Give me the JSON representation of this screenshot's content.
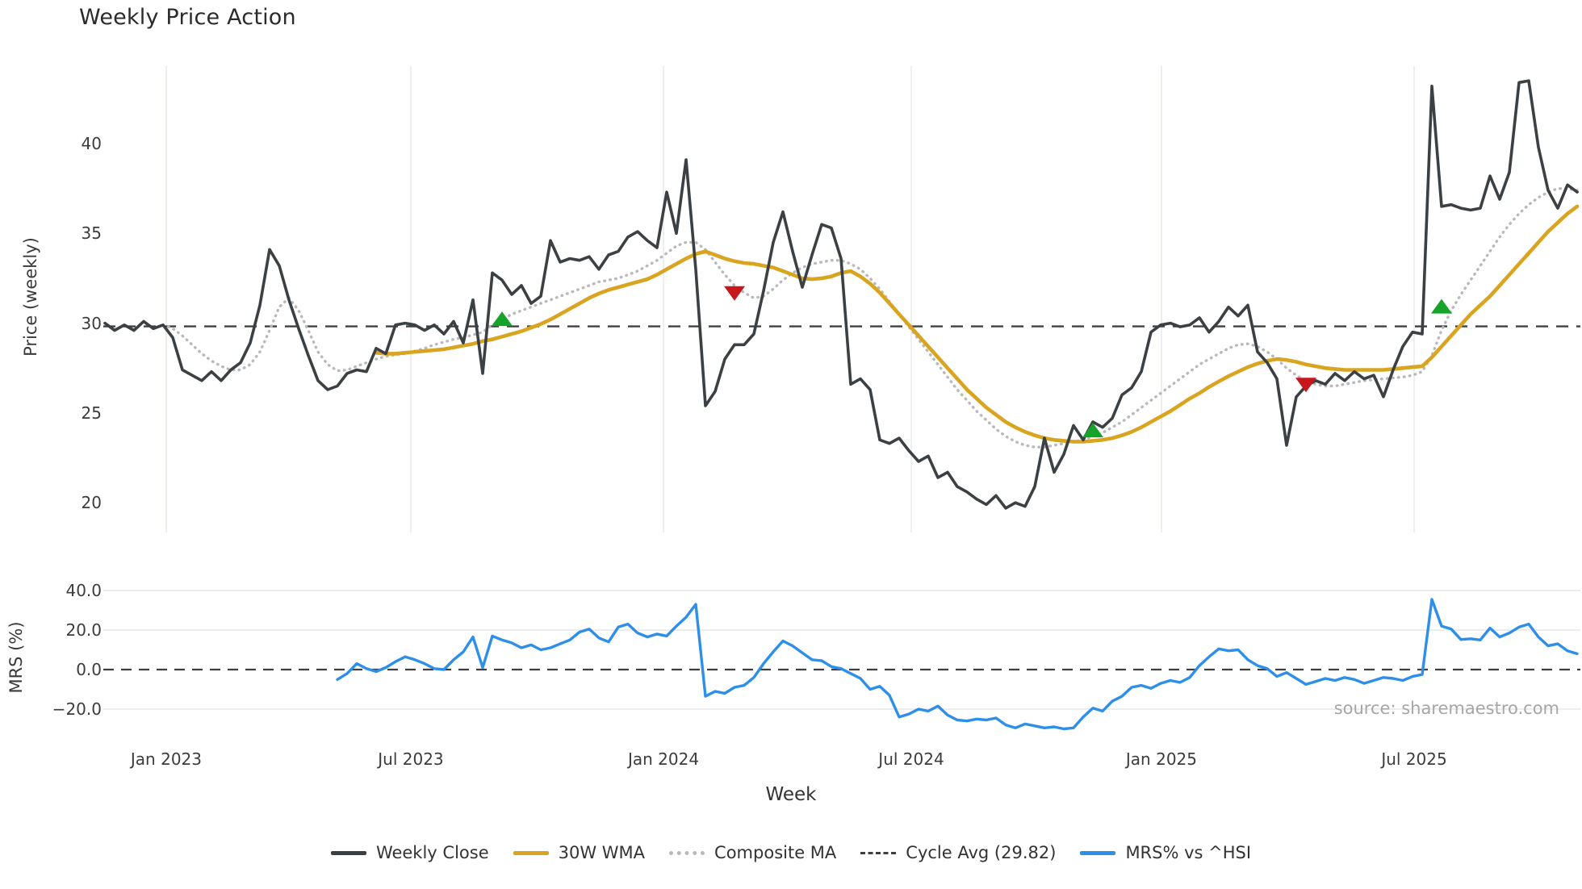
{
  "page": {
    "title": "Weekly Price Action",
    "source_note": "source: sharemaestro.com"
  },
  "colors": {
    "weekly_close": "#3b4044",
    "wma_30w": "#d9a521",
    "composite_ma": "#b9b9b9",
    "cycle_avg": "#3f3f3f",
    "mrs": "#2e8fe9",
    "buy_marker": "#16a329",
    "sell_marker": "#c8161d",
    "gridline": "#e9e9f0",
    "gridline_minor": "#e7e7e7",
    "tick_text": "#3c3c3c"
  },
  "legend": {
    "items": [
      {
        "label": "Weekly Close",
        "style": "solid",
        "color_key": "weekly_close"
      },
      {
        "label": "30W WMA",
        "style": "solid",
        "color_key": "wma_30w"
      },
      {
        "label": "Composite MA",
        "style": "dotted",
        "color_key": "composite_ma"
      },
      {
        "label": "Cycle Avg (29.82)",
        "style": "dashed",
        "color_key": "cycle_avg"
      },
      {
        "label": "MRS% vs ^HSI",
        "style": "solid",
        "color_key": "mrs"
      }
    ]
  },
  "chart_data": [
    {
      "id": "price",
      "type": "line",
      "title": "Weekly Price Action",
      "ylabel": "Price (weekly)",
      "xlabel": "Week",
      "ylim": [
        18.3,
        44.4
      ],
      "yticks": [
        40,
        35,
        30,
        25,
        20
      ],
      "grid": "vertical-only",
      "x_axis": {
        "tick_labels": [
          "Jan 2023",
          "Jul 2023",
          "Jan 2024",
          "Jul 2024",
          "Jan 2025",
          "Jul 2025"
        ],
        "tick_week_index": [
          6.33,
          31.58,
          57.67,
          83.25,
          109.08,
          135.17
        ],
        "weeks_total": 153
      },
      "cycle_avg": 29.82,
      "series": [
        {
          "name": "Weekly Close",
          "style": "solid",
          "color_key": "weekly_close",
          "start_week_index": 0,
          "values": [
            30.0,
            29.6,
            29.9,
            29.6,
            30.1,
            29.7,
            29.9,
            29.2,
            27.4,
            27.1,
            26.8,
            27.3,
            26.8,
            27.4,
            27.8,
            28.9,
            31.0,
            34.1,
            33.2,
            31.3,
            29.7,
            28.2,
            26.8,
            26.3,
            26.5,
            27.2,
            27.4,
            27.3,
            28.6,
            28.3,
            29.9,
            30.0,
            29.9,
            29.6,
            29.9,
            29.4,
            30.1,
            28.9,
            31.3,
            27.2,
            32.8,
            32.4,
            31.6,
            32.1,
            31.1,
            31.5,
            34.6,
            33.4,
            33.6,
            33.5,
            33.7,
            33.0,
            33.8,
            34.0,
            34.8,
            35.1,
            34.6,
            34.2,
            37.3,
            35.0,
            39.1,
            33.0,
            25.4,
            26.2,
            28.0,
            28.8,
            28.8,
            29.4,
            31.8,
            34.5,
            36.2,
            34.0,
            32.0,
            33.8,
            35.5,
            35.3,
            33.6,
            26.6,
            26.9,
            26.3,
            23.5,
            23.3,
            23.6,
            22.9,
            22.3,
            22.6,
            21.4,
            21.7,
            20.9,
            20.6,
            20.2,
            19.9,
            20.4,
            19.7,
            20.0,
            19.8,
            20.9,
            23.6,
            21.7,
            22.7,
            24.3,
            23.5,
            24.5,
            24.2,
            24.7,
            26.0,
            26.4,
            27.3,
            29.5,
            29.9,
            30.0,
            29.8,
            29.9,
            30.3,
            29.5,
            30.1,
            30.9,
            30.4,
            31.0,
            28.4,
            27.8,
            26.9,
            23.2,
            25.9,
            26.5,
            26.8,
            26.6,
            27.2,
            26.8,
            27.3,
            26.9,
            27.1,
            25.9,
            27.4,
            28.7,
            29.5,
            29.4,
            43.2,
            36.5,
            36.6,
            36.4,
            36.3,
            36.4,
            38.2,
            36.9,
            38.4,
            43.4,
            43.5,
            39.8,
            37.4,
            36.4,
            37.7,
            37.3
          ]
        },
        {
          "name": "30W WMA",
          "style": "solid",
          "color_key": "wma_30w",
          "start_week_index": 28,
          "values": [
            28.35,
            28.3,
            28.3,
            28.35,
            28.4,
            28.45,
            28.5,
            28.55,
            28.65,
            28.75,
            28.85,
            29.0,
            29.1,
            29.25,
            29.4,
            29.55,
            29.75,
            29.95,
            30.2,
            30.5,
            30.8,
            31.1,
            31.4,
            31.65,
            31.85,
            32.0,
            32.15,
            32.3,
            32.45,
            32.7,
            33.0,
            33.3,
            33.6,
            33.85,
            34.0,
            33.8,
            33.6,
            33.45,
            33.35,
            33.3,
            33.2,
            33.1,
            32.9,
            32.7,
            32.5,
            32.45,
            32.5,
            32.6,
            32.8,
            32.9,
            32.6,
            32.2,
            31.7,
            31.1,
            30.5,
            29.9,
            29.3,
            28.7,
            28.1,
            27.5,
            26.9,
            26.3,
            25.8,
            25.3,
            24.9,
            24.5,
            24.2,
            23.95,
            23.75,
            23.6,
            23.5,
            23.45,
            23.4,
            23.4,
            23.45,
            23.5,
            23.6,
            23.75,
            23.95,
            24.2,
            24.5,
            24.8,
            25.1,
            25.45,
            25.8,
            26.1,
            26.45,
            26.75,
            27.05,
            27.3,
            27.55,
            27.75,
            27.9,
            28.0,
            27.95,
            27.85,
            27.7,
            27.6,
            27.5,
            27.45,
            27.4,
            27.4,
            27.4,
            27.4,
            27.4,
            27.45,
            27.5,
            27.55,
            27.6,
            28.1,
            28.7,
            29.3,
            29.9,
            30.5,
            31.0,
            31.5,
            32.1,
            32.7,
            33.3,
            33.9,
            34.5,
            35.1,
            35.6,
            36.1,
            36.5
          ]
        },
        {
          "name": "Composite MA",
          "style": "dotted",
          "color_key": "composite_ma",
          "start_week_index": 6,
          "values": [
            29.9,
            29.7,
            29.3,
            28.8,
            28.3,
            27.9,
            27.6,
            27.4,
            27.4,
            27.7,
            28.4,
            29.6,
            30.9,
            31.4,
            30.7,
            29.6,
            28.4,
            27.7,
            27.35,
            27.4,
            27.6,
            27.8,
            28.0,
            28.15,
            28.25,
            28.3,
            28.45,
            28.6,
            28.8,
            28.95,
            29.1,
            29.2,
            29.35,
            29.5,
            29.9,
            30.2,
            30.5,
            30.7,
            30.9,
            31.1,
            31.3,
            31.5,
            31.7,
            31.9,
            32.1,
            32.3,
            32.4,
            32.5,
            32.7,
            32.9,
            33.2,
            33.5,
            33.9,
            34.3,
            34.5,
            34.5,
            34.1,
            33.4,
            32.7,
            32.1,
            31.7,
            31.4,
            31.5,
            31.9,
            32.4,
            32.8,
            33.1,
            33.3,
            33.4,
            33.5,
            33.5,
            33.3,
            33.0,
            32.5,
            31.9,
            31.2,
            30.5,
            29.8,
            29.1,
            28.4,
            27.7,
            27.0,
            26.3,
            25.7,
            25.1,
            24.6,
            24.1,
            23.7,
            23.4,
            23.2,
            23.1,
            23.1,
            23.2,
            23.3,
            23.4,
            23.5,
            23.7,
            23.9,
            24.2,
            24.5,
            24.9,
            25.3,
            25.7,
            26.1,
            26.5,
            26.9,
            27.3,
            27.7,
            28.0,
            28.3,
            28.6,
            28.8,
            28.85,
            28.7,
            28.4,
            28.0,
            27.5,
            27.1,
            26.8,
            26.6,
            26.5,
            26.5,
            26.6,
            26.7,
            26.8,
            26.85,
            26.9,
            26.95,
            27.0,
            27.1,
            27.3,
            28.2,
            29.6,
            30.7,
            31.6,
            32.4,
            33.2,
            34.0,
            34.8,
            35.5,
            36.1,
            36.6,
            37.0,
            37.3,
            37.5,
            37.5,
            37.4
          ]
        }
      ],
      "signals": [
        {
          "type": "buy",
          "week_index": 41,
          "price": 30.2
        },
        {
          "type": "sell",
          "week_index": 65,
          "price": 31.7
        },
        {
          "type": "buy",
          "week_index": 102,
          "price": 24.0
        },
        {
          "type": "sell",
          "week_index": 124,
          "price": 26.6
        },
        {
          "type": "buy",
          "week_index": 138,
          "price": 30.9
        }
      ]
    },
    {
      "id": "mrs",
      "type": "line",
      "ylabel": "MRS (%)",
      "ylim": [
        -34,
        44
      ],
      "yticks": [
        {
          "value": 40,
          "label": "40.0"
        },
        {
          "value": 20,
          "label": "20.0"
        },
        {
          "value": 0,
          "label": "0.0"
        },
        {
          "value": -20,
          "label": "−20.0"
        }
      ],
      "zero_line_dashed": true,
      "series": [
        {
          "name": "MRS% vs ^HSI",
          "style": "solid",
          "color_key": "mrs",
          "start_week_index": 24,
          "values": [
            -5,
            -2,
            3,
            0.5,
            -1,
            1,
            4,
            6.5,
            5,
            3,
            0.5,
            0,
            5,
            9,
            16.5,
            1,
            17,
            15,
            13.5,
            11,
            12.5,
            10,
            11,
            13,
            15,
            19,
            20.5,
            16,
            14,
            21.5,
            23,
            18.5,
            16.5,
            18,
            17,
            22,
            26.5,
            33,
            -13.5,
            -11,
            -12,
            -9,
            -8,
            -4,
            3,
            9,
            14.5,
            12,
            8.5,
            5,
            4.5,
            1.5,
            0.5,
            -2,
            -4.5,
            -10,
            -8.5,
            -13,
            -24,
            -22.5,
            -20,
            -21,
            -18.5,
            -23,
            -25.5,
            -26,
            -25,
            -25.5,
            -24.5,
            -28,
            -29.5,
            -27.5,
            -28.5,
            -29.5,
            -29,
            -30,
            -29.5,
            -24,
            -19.5,
            -21,
            -16,
            -13.5,
            -9,
            -8,
            -9.5,
            -7,
            -5.5,
            -6.5,
            -4,
            2,
            6.5,
            10.5,
            9.5,
            10,
            5,
            2,
            0.5,
            -3.5,
            -1.5,
            -4.5,
            -7.5,
            -6,
            -4.5,
            -5.5,
            -4,
            -5,
            -7,
            -5.5,
            -4,
            -4.5,
            -5.5,
            -3.5,
            -2.5,
            35.5,
            22,
            20.5,
            15.2,
            15.6,
            15,
            21,
            16.5,
            18.5,
            21.5,
            23,
            16.5,
            12,
            13,
            9.5,
            8
          ]
        }
      ]
    }
  ]
}
